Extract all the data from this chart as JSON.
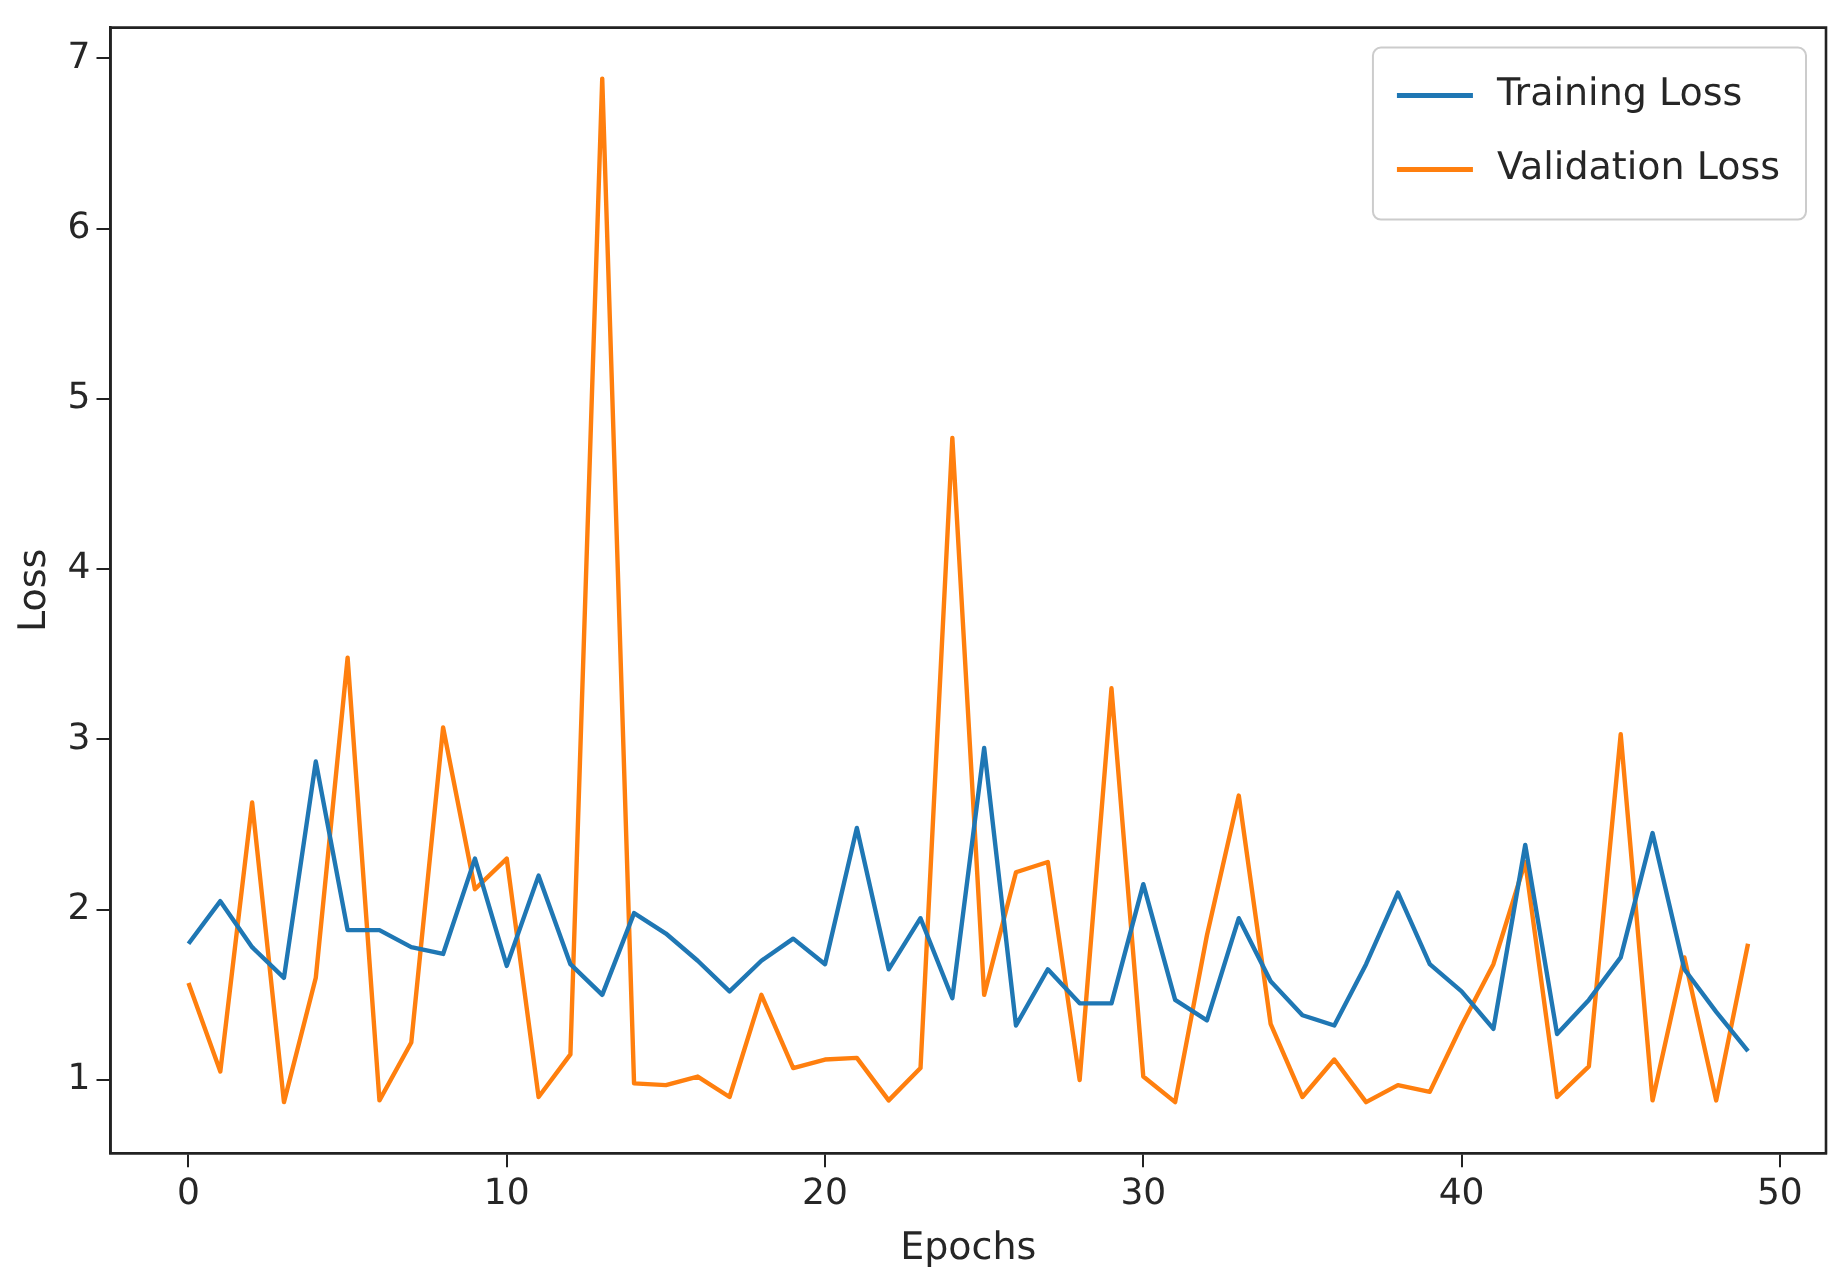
{
  "chart_data": {
    "type": "line",
    "xlabel": "Epochs",
    "ylabel": "Loss",
    "x": [
      0,
      1,
      2,
      3,
      4,
      5,
      6,
      7,
      8,
      9,
      10,
      11,
      12,
      13,
      14,
      15,
      16,
      17,
      18,
      19,
      20,
      21,
      22,
      23,
      24,
      25,
      26,
      27,
      28,
      29,
      30,
      31,
      32,
      33,
      34,
      35,
      36,
      37,
      38,
      39,
      40,
      41,
      42,
      43,
      44,
      45,
      46,
      47,
      48,
      49
    ],
    "series": [
      {
        "name": "Training Loss",
        "color": "#1f77b4",
        "values": [
          1.8,
          2.05,
          1.78,
          1.6,
          2.87,
          1.88,
          1.88,
          1.78,
          1.74,
          2.3,
          1.67,
          2.2,
          1.68,
          1.5,
          1.98,
          1.86,
          1.7,
          1.52,
          1.7,
          1.83,
          1.68,
          2.48,
          1.65,
          1.95,
          1.48,
          2.95,
          1.32,
          1.65,
          1.45,
          1.45,
          2.15,
          1.47,
          1.35,
          1.95,
          1.58,
          1.38,
          1.32,
          1.68,
          2.1,
          1.68,
          1.52,
          1.3,
          2.38,
          1.27,
          1.47,
          1.72,
          2.45,
          1.65,
          1.4,
          1.17
        ]
      },
      {
        "name": "Validation Loss",
        "color": "#ff7f0e",
        "values": [
          1.57,
          1.05,
          2.63,
          0.87,
          1.6,
          3.48,
          0.88,
          1.22,
          3.07,
          2.12,
          2.3,
          0.9,
          1.15,
          6.88,
          0.98,
          0.97,
          1.02,
          0.9,
          1.5,
          1.07,
          1.12,
          1.13,
          0.88,
          1.07,
          4.77,
          1.5,
          2.22,
          2.28,
          1.0,
          3.3,
          1.02,
          0.87,
          1.85,
          2.67,
          1.33,
          0.9,
          1.12,
          0.87,
          0.97,
          0.93,
          1.32,
          1.68,
          2.28,
          0.9,
          1.08,
          3.03,
          0.88,
          1.72,
          0.88,
          1.8
        ]
      }
    ],
    "xlim": [
      -2.45,
      51.45
    ],
    "xticks": [
      0,
      10,
      20,
      30,
      40,
      50
    ],
    "ylim": [
      0.57,
      7.18
    ],
    "yticks": [
      1,
      2,
      3,
      4,
      5,
      6,
      7
    ],
    "grid": false,
    "legend": "top right",
    "marker": "none",
    "line_style": "solid"
  }
}
